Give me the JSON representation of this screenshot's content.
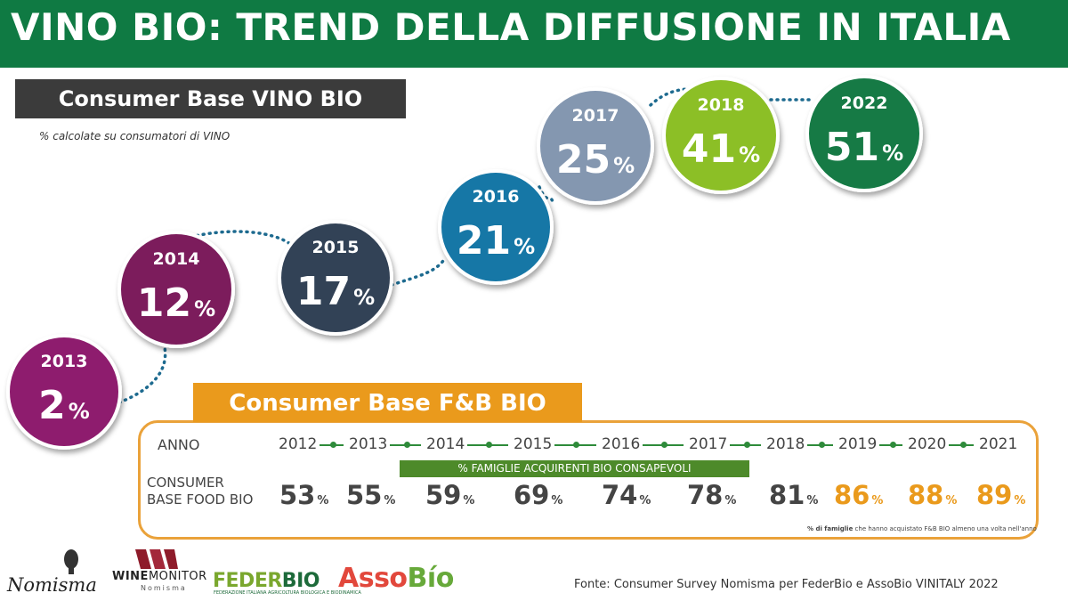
{
  "header": {
    "title": "VINO BIO: TREND DELLA DIFFUSIONE IN ITALIA"
  },
  "vino": {
    "title": "Consumer Base VINO BIO",
    "note": "% calcolate  su consumatori di VINO"
  },
  "chart_data": {
    "type": "bubble-timeline",
    "title": "Consumer Base VINO BIO",
    "unit": "%",
    "points": [
      {
        "year": "2013",
        "value": 2,
        "color": "#8e1f6e"
      },
      {
        "year": "2014",
        "value": 12,
        "color": "#7b1f5c"
      },
      {
        "year": "2015",
        "value": 17,
        "color": "#334257"
      },
      {
        "year": "2016",
        "value": 21,
        "color": "#1677a6"
      },
      {
        "year": "2017",
        "value": 25,
        "color": "#8497b0"
      },
      {
        "year": "2018",
        "value": 41,
        "color": "#8cbf26"
      },
      {
        "year": "2022",
        "value": 51,
        "color": "#127a45"
      }
    ]
  },
  "fb": {
    "title": "Consumer Base F&B BIO",
    "anno_label": "ANNO",
    "row_label_line1": "CONSUMER",
    "row_label_line2": "BASE FOOD BIO",
    "bar_label": "% FAMIGLIE ACQUIRENTI BIO CONSAPEVOLI",
    "note_bold": "% di famiglie",
    "note_rest": " che hanno acquistato F&B BIO almeno una volta nell'anno",
    "unit": "%",
    "highlight_color": "#ea9a1c",
    "years": [
      "2012",
      "2013",
      "2014",
      "2015",
      "2016",
      "2017",
      "2018",
      "2019",
      "2020",
      "2021"
    ],
    "values": [
      53,
      55,
      59,
      69,
      74,
      78,
      81,
      86,
      88,
      89
    ],
    "highlighted": [
      false,
      false,
      false,
      false,
      false,
      false,
      false,
      true,
      true,
      true
    ]
  },
  "footer": {
    "logos": {
      "nomisma": "Nomisma",
      "winemonitor_a": "WINE",
      "winemonitor_b": "MONITOR",
      "winemonitor_sub": "Nomisma",
      "federbio_a": "FEDER",
      "federbio_b": "BIO",
      "federbio_sub": "FEDERAZIONE ITALIANA AGRICOLTURA BIOLOGICA E BIODINAMICA",
      "assobio_a": "Asso",
      "assobio_b": "Bío"
    },
    "source": "Fonte:  Consumer Survey Nomisma per FederBio e AssoBio VINITALY 2022"
  }
}
